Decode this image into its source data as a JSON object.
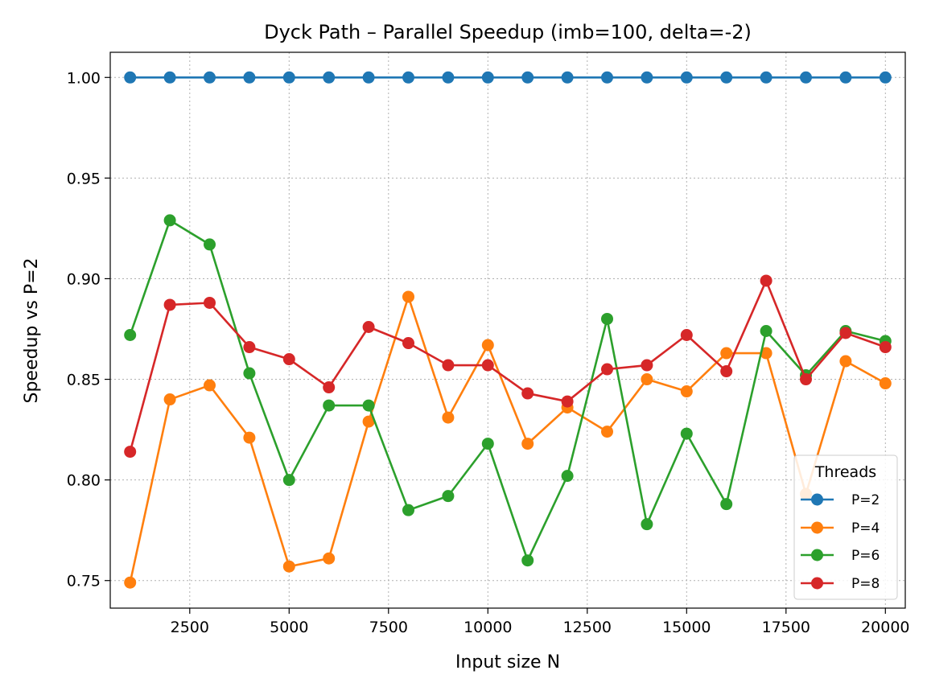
{
  "chart_data": {
    "type": "line",
    "title": "Dyck Path – Parallel Speedup (imb=100, delta=-2)",
    "xlabel": "Input size N",
    "ylabel": "Speedup vs P=2",
    "xlim": [
      500,
      20500
    ],
    "ylim": [
      0.7363,
      1.0125
    ],
    "x_ticks": [
      "2500",
      "5000",
      "7500",
      "10000",
      "12500",
      "15000",
      "17500",
      "20000"
    ],
    "y_ticks": [
      "0.75",
      "0.80",
      "0.85",
      "0.90",
      "0.95",
      "1.00"
    ],
    "grid": true,
    "legend": {
      "title": "Threads",
      "placement": "lower-right"
    },
    "x": [
      1000,
      2000,
      3000,
      4000,
      5000,
      6000,
      7000,
      8000,
      9000,
      10000,
      11000,
      12000,
      13000,
      14000,
      15000,
      16000,
      17000,
      18000,
      19000,
      20000
    ],
    "series": [
      {
        "name": "P=2",
        "color": "#1f77b4",
        "values": [
          1.0,
          1.0,
          1.0,
          1.0,
          1.0,
          1.0,
          1.0,
          1.0,
          1.0,
          1.0,
          1.0,
          1.0,
          1.0,
          1.0,
          1.0,
          1.0,
          1.0,
          1.0,
          1.0,
          1.0
        ]
      },
      {
        "name": "P=4",
        "color": "#ff7f0e",
        "values": [
          0.749,
          0.84,
          0.847,
          0.821,
          0.757,
          0.761,
          0.829,
          0.891,
          0.831,
          0.867,
          0.818,
          0.836,
          0.824,
          0.85,
          0.844,
          0.863,
          0.863,
          0.793,
          0.859,
          0.848
        ]
      },
      {
        "name": "P=6",
        "color": "#2ca02c",
        "values": [
          0.872,
          0.929,
          0.917,
          0.853,
          0.8,
          0.837,
          0.837,
          0.785,
          0.792,
          0.818,
          0.76,
          0.802,
          0.88,
          0.778,
          0.823,
          0.788,
          0.874,
          0.852,
          0.874,
          0.869
        ]
      },
      {
        "name": "P=8",
        "color": "#d62728",
        "values": [
          0.814,
          0.887,
          0.888,
          0.866,
          0.86,
          0.846,
          0.876,
          0.868,
          0.857,
          0.857,
          0.843,
          0.839,
          0.855,
          0.857,
          0.872,
          0.854,
          0.899,
          0.85,
          0.873,
          0.866
        ]
      }
    ]
  }
}
